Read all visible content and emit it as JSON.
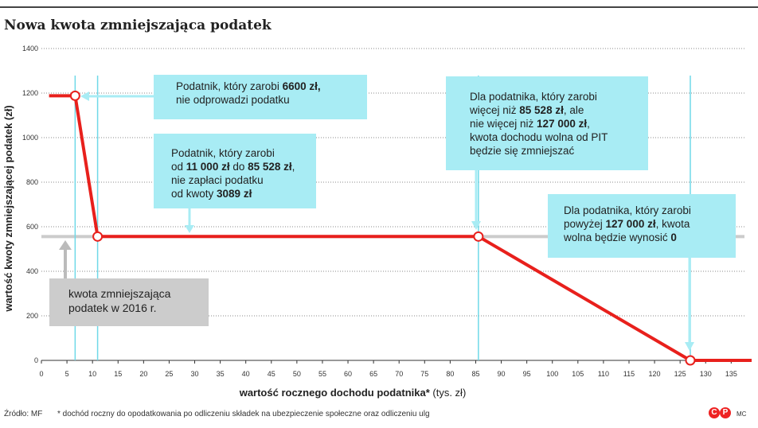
{
  "title": "Nowa kwota zmniejszająca podatek",
  "chart_data": {
    "type": "line",
    "title": "Nowa kwota zmniejszająca podatek",
    "ylabel": "wartość kwoty zmniejszającej podatek (zł)",
    "xlabel_bold": "wartość rocznego dochodu podatnika*",
    "xlabel_rest": " (tys. zł)",
    "xlim": [
      0,
      139
    ],
    "ylim": [
      0,
      1400
    ],
    "x_ticks": [
      0,
      5,
      10,
      15,
      20,
      25,
      30,
      35,
      40,
      45,
      50,
      55,
      60,
      65,
      70,
      75,
      80,
      85,
      90,
      95,
      100,
      105,
      110,
      115,
      120,
      125,
      130,
      135
    ],
    "y_ticks": [
      0,
      200,
      400,
      600,
      800,
      1000,
      1200,
      1400
    ],
    "grid": "horizontal dotted",
    "series": [
      {
        "color": "#e8201c",
        "points": [
          [
            1.5,
            1188
          ],
          [
            6.6,
            1188
          ],
          [
            11,
            556.02
          ],
          [
            85.528,
            556.02
          ],
          [
            127,
            0
          ],
          [
            139,
            0
          ]
        ],
        "markers": [
          [
            6.6,
            1188
          ],
          [
            11,
            556.02
          ],
          [
            85.528,
            556.02
          ],
          [
            127,
            0
          ]
        ]
      }
    ],
    "reference_line": {
      "y": 556.02,
      "color": "#cccccc",
      "label": "kwota zmniejszająca podatek w 2016 r."
    },
    "vertical_lines": [
      6.6,
      11,
      85.528,
      127
    ],
    "annotations": [
      {
        "parts": [
          [
            "Podatnik, który zarobi ",
            false
          ],
          [
            "6600 zł,",
            true
          ],
          [
            "\nnie odprowadzi podatku",
            false
          ]
        ]
      },
      {
        "parts": [
          [
            "Podatnik, który zarobi\nod ",
            false
          ],
          [
            "11 000 zł",
            true
          ],
          [
            " do ",
            false
          ],
          [
            "85 528 zł",
            true
          ],
          [
            ",\nnie zapłaci podatku\nod kwoty ",
            false
          ],
          [
            "3089 zł",
            true
          ]
        ]
      },
      {
        "parts": [
          [
            "Dla podatnika, który zarobi\nwięcej niż ",
            false
          ],
          [
            "85 528 zł",
            true
          ],
          [
            ", ale\nnie więcej niż ",
            false
          ],
          [
            "127 000 zł",
            true
          ],
          [
            ",\nkwota dochodu wolna od PIT\nbędzie się zmniejszać",
            false
          ]
        ]
      },
      {
        "parts": [
          [
            "Dla podatnika, który zarobi\npowyżej ",
            false
          ],
          [
            "127 000 zł",
            true
          ],
          [
            ", kwota\nwolna będzie wynosić ",
            false
          ],
          [
            "0",
            true
          ]
        ]
      }
    ]
  },
  "footer": {
    "source": "Źródło: MF",
    "note": "* dochód roczny do opodatkowania po odliczeniu składek na ubezpieczenie społeczne oraz odliczeniu ulg",
    "logo_text": "MC",
    "logo_colors": "#e22"
  }
}
